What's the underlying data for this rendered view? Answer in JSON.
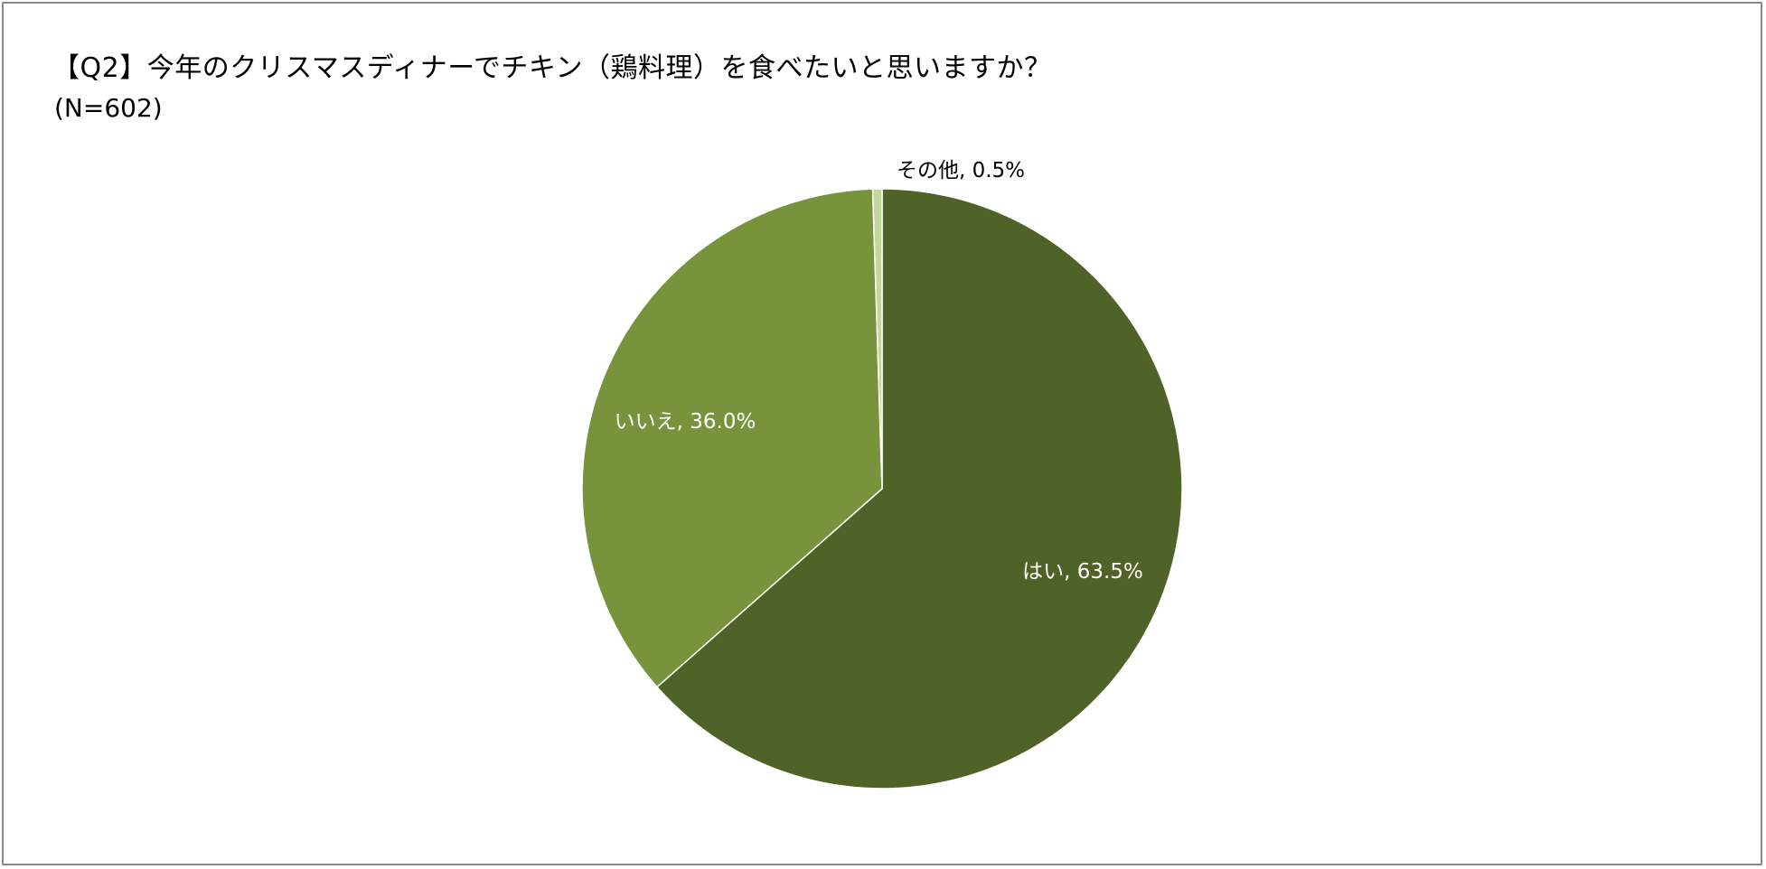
{
  "chart_data": {
    "type": "pie",
    "title": "【Q2】今年のクリスマスディナーでチキン（鶏料理）を食べたいと思いますか？",
    "subtitle": "(N=602)",
    "categories": [
      "はい",
      "いいえ",
      "その他"
    ],
    "values": [
      63.5,
      36.0,
      0.5
    ],
    "unit": "%",
    "colors": [
      "#4f6228",
      "#77933c",
      "#c3d69b"
    ],
    "label_colors": [
      "#ffffff",
      "#ffffff",
      "#000000"
    ],
    "data_labels": [
      "はい, 63.5%",
      "いいえ, 36.0%",
      "その他, 0.5%"
    ],
    "start_angle": "12 o'clock",
    "direction": "clockwise",
    "legend": "none"
  }
}
